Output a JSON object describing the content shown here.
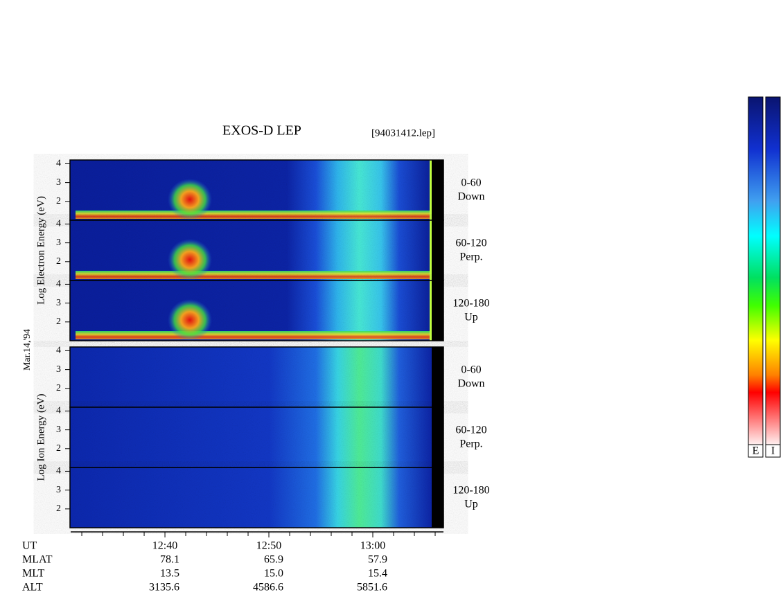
{
  "chart_data": {
    "type": "spectrogram",
    "title": "EXOS-D LEP",
    "file_label": "[94031412.lep]",
    "date_label": "Mar.14,'94",
    "groups": [
      {
        "ylabel": "Log Electron Energy (eV)",
        "panels": [
          {
            "angle": "0-60",
            "direction": "Down"
          },
          {
            "angle": "60-120",
            "direction": "Perp."
          },
          {
            "angle": "120-180",
            "direction": "Up"
          }
        ]
      },
      {
        "ylabel": "Log Ion Energy (eV)",
        "panels": [
          {
            "angle": "0-60",
            "direction": "Down"
          },
          {
            "angle": "60-120",
            "direction": "Perp."
          },
          {
            "angle": "120-180",
            "direction": "Up"
          }
        ]
      }
    ],
    "ylim": [
      1,
      4.2
    ],
    "yticks": [
      2,
      3,
      4
    ],
    "xlim": [
      750.93,
      786.8
    ],
    "xticks": [
      {
        "value": 760,
        "label": "12:40"
      },
      {
        "value": 770,
        "label": "12:50"
      },
      {
        "value": 780,
        "label": "13:00"
      }
    ],
    "xminorticks": [
      752,
      754,
      756,
      758,
      762,
      764,
      766,
      768,
      772,
      774,
      776,
      778,
      782,
      784,
      786
    ],
    "xaxis_name": "UT",
    "ephemeris": [
      {
        "name": "MLAT",
        "values": [
          "78.1",
          "65.9",
          "57.9"
        ]
      },
      {
        "name": "MLT",
        "values": [
          "13.5",
          "15.0",
          "15.4"
        ]
      },
      {
        "name": "ALT",
        "values": [
          "3135.6",
          "4586.6",
          "5851.6"
        ]
      }
    ],
    "colorbars": [
      "E",
      "I"
    ]
  }
}
